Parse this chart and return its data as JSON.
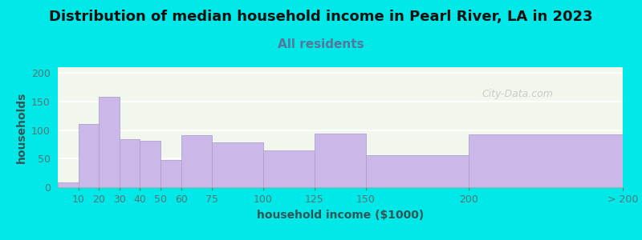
{
  "title": "Distribution of median household income in Pearl River, LA in 2023",
  "subtitle": "All residents",
  "xlabel": "household income ($1000)",
  "ylabel": "households",
  "bar_lefts": [
    0,
    10,
    20,
    30,
    40,
    50,
    60,
    75,
    100,
    125,
    150,
    200
  ],
  "bar_widths": [
    10,
    10,
    10,
    10,
    10,
    10,
    15,
    25,
    25,
    25,
    50,
    75
  ],
  "bar_values": [
    8,
    110,
    158,
    84,
    81,
    47,
    91,
    79,
    65,
    94,
    56,
    93
  ],
  "bar_color": "#c9b8e8",
  "bar_edgecolor": "#b0a0d0",
  "background_color": "#00e8e8",
  "plot_bg_color": "#f2f7ee",
  "ylim": [
    0,
    210
  ],
  "yticks": [
    0,
    50,
    100,
    150,
    200
  ],
  "xtick_positions": [
    10,
    20,
    30,
    40,
    50,
    60,
    75,
    100,
    125,
    150,
    200,
    275
  ],
  "xtick_labels": [
    "10",
    "20",
    "30",
    "40",
    "50",
    "60",
    "75",
    "100",
    "125",
    "150",
    "200",
    "> 200"
  ],
  "xlim": [
    0,
    275
  ],
  "title_fontsize": 13,
  "subtitle_fontsize": 11,
  "label_fontsize": 10,
  "tick_fontsize": 9,
  "tick_color": "#557777",
  "label_color": "#335555",
  "title_color": "#111111",
  "subtitle_color": "#557799",
  "watermark": "City-Data.com"
}
